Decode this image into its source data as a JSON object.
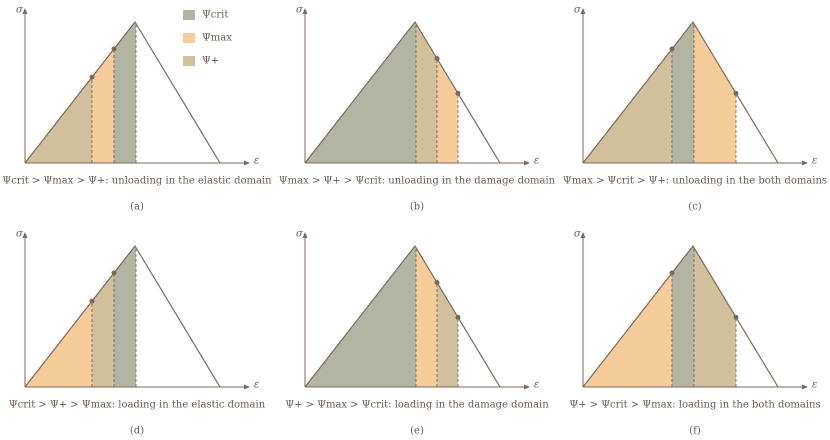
{
  "legend": [
    {
      "label": "Ψcrit"
    },
    {
      "label": "Ψmax"
    },
    {
      "label": "Ψ+"
    }
  ],
  "axes": {
    "y_label": "σ",
    "x_label": "ε"
  },
  "panels": [
    {
      "caption": "Ψcrit > Ψmax > Ψ+: unloading in the elastic domain",
      "label": "(a)"
    },
    {
      "caption": "Ψmax > Ψ+ > Ψcrit: unloading in the damage domain",
      "label": "(b)"
    },
    {
      "caption": "Ψmax > Ψcrit > Ψ+: unloading in the both domains",
      "label": "(c)"
    },
    {
      "caption": "Ψcrit > Ψ+ > Ψmax: loading in the elastic domain",
      "label": "(d)"
    },
    {
      "caption": "Ψ+ > Ψmax > Ψcrit: loading in the damage domain",
      "label": "(e)"
    },
    {
      "caption": "Ψ+ > Ψcrit > Ψmax: loading in the both domains",
      "label": "(f)"
    }
  ]
}
